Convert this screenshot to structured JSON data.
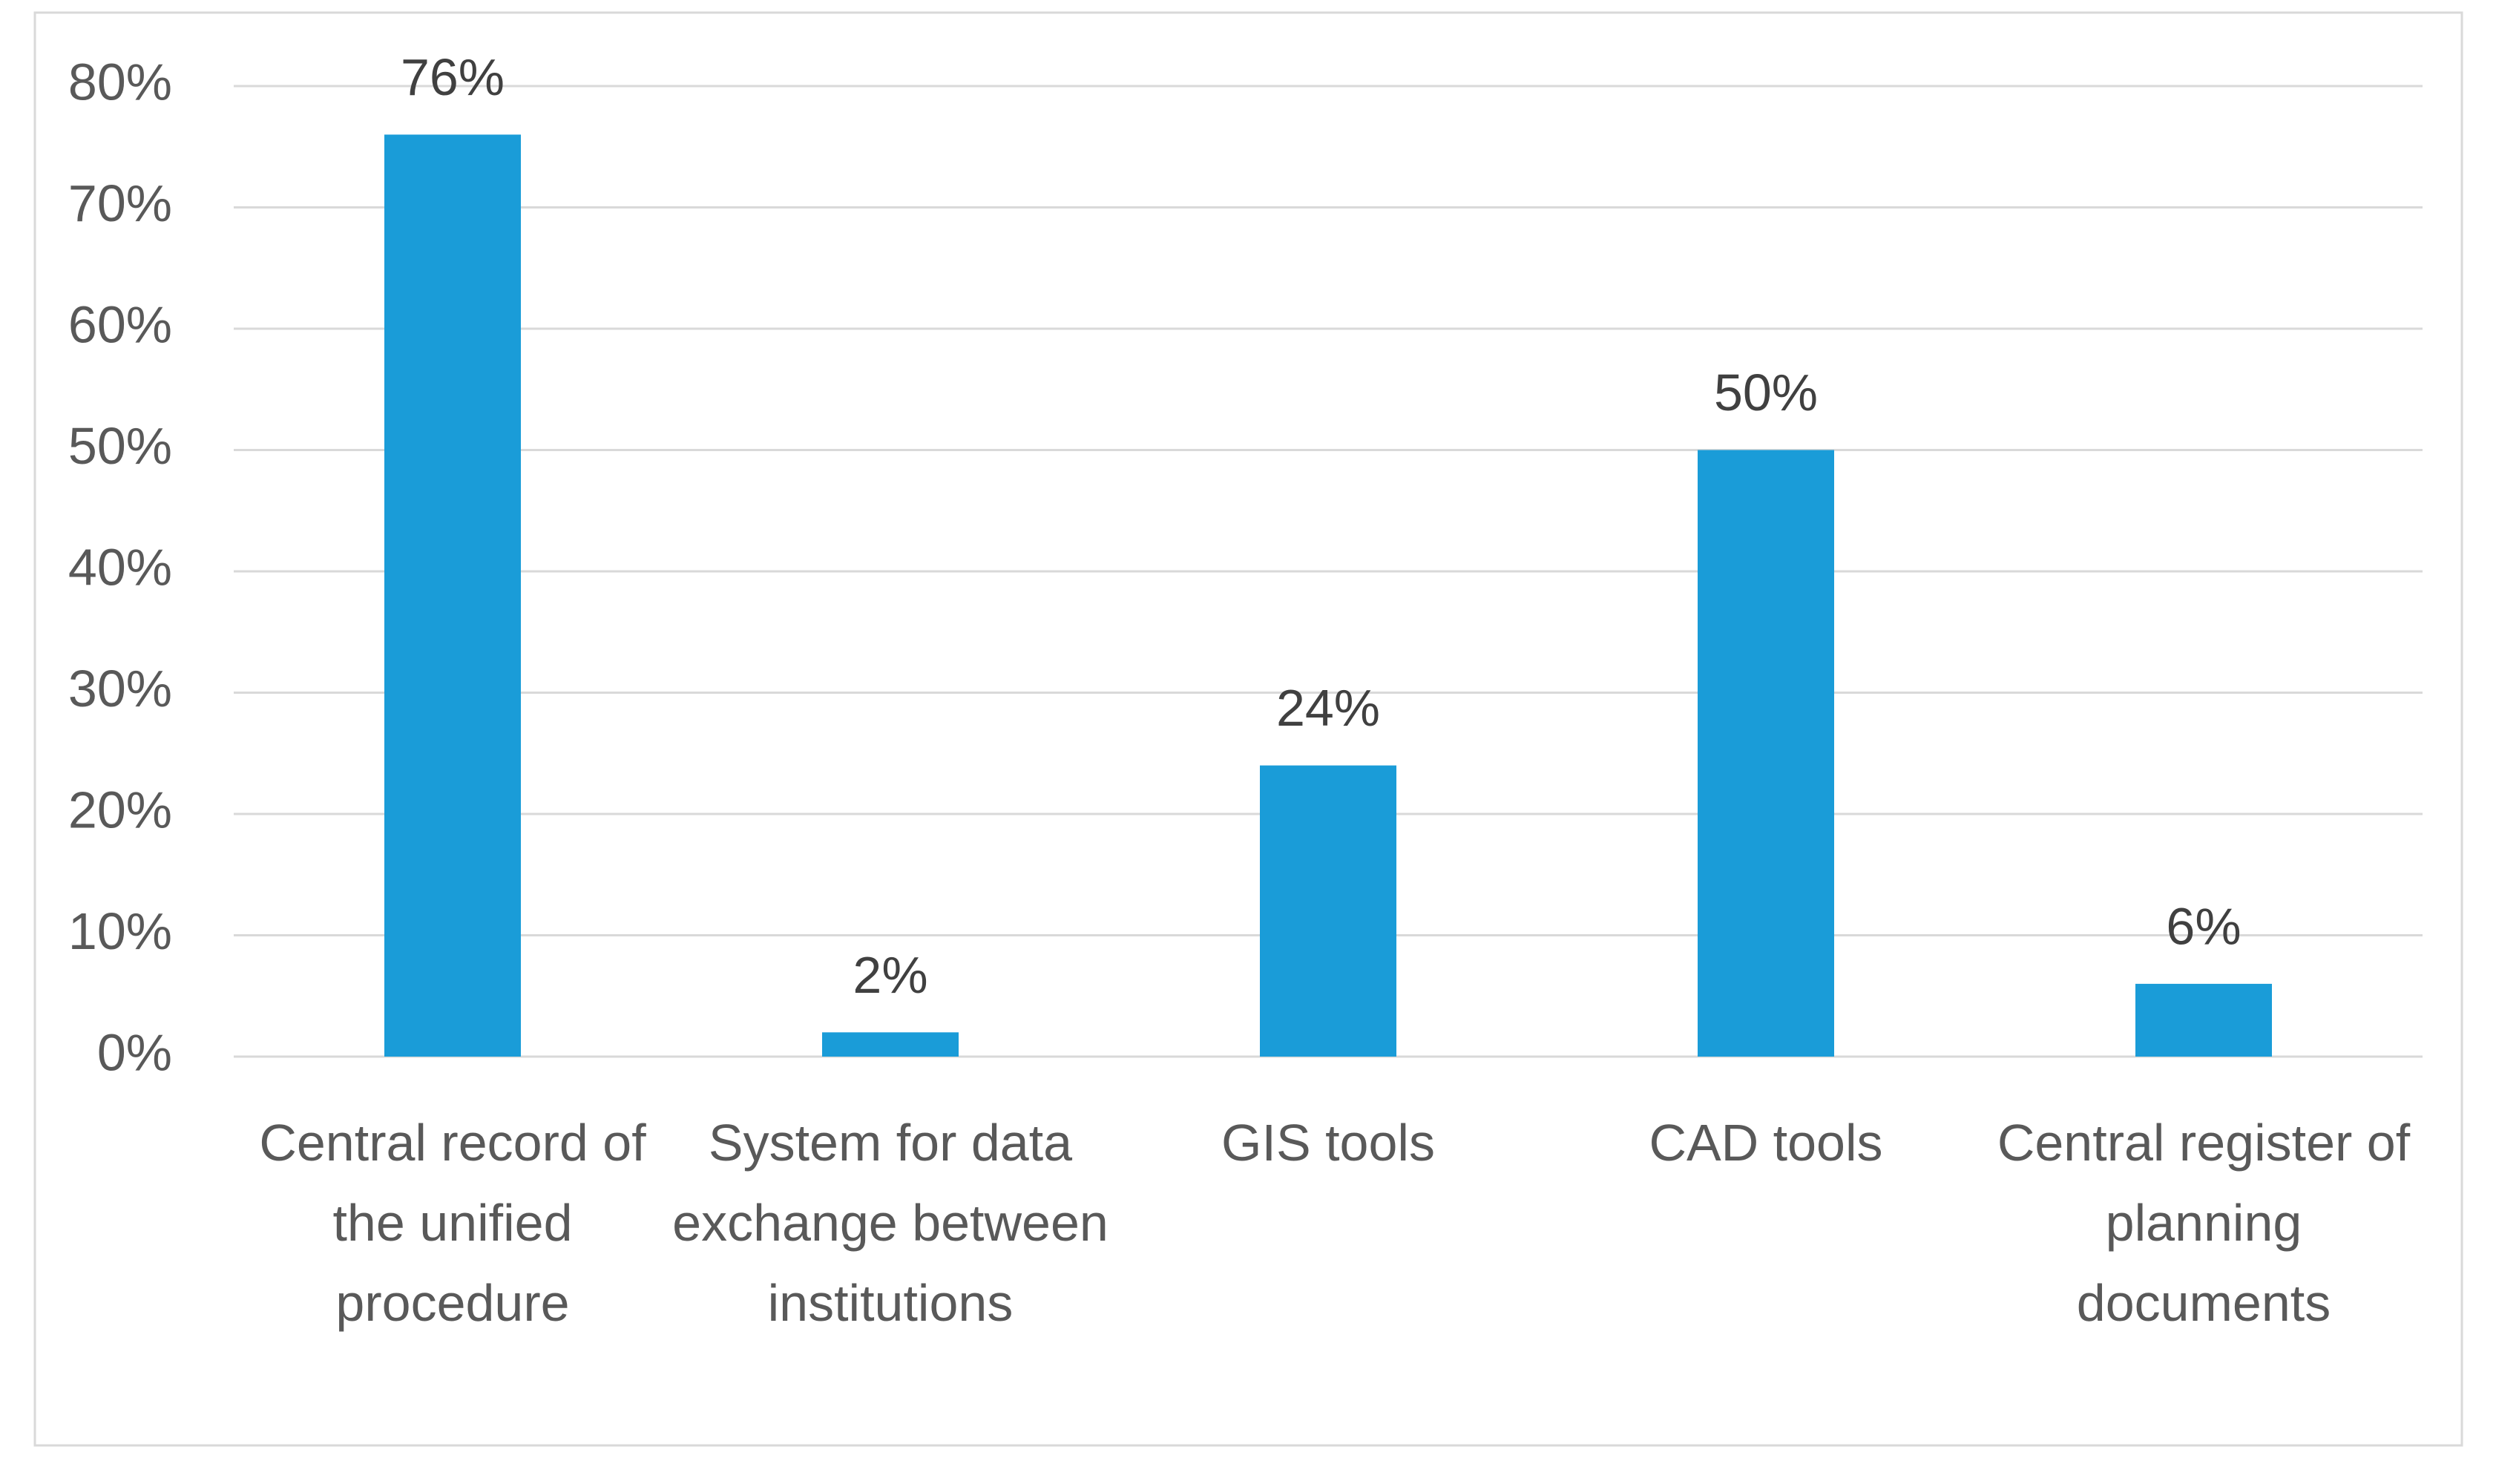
{
  "chart_data": {
    "type": "bar",
    "categories": [
      "Central record of the unified procedure",
      "System for data exchange between institutions",
      "GIS tools",
      "CAD tools",
      "Central register of planning documents"
    ],
    "values": [
      76,
      2,
      24,
      50,
      6
    ],
    "value_labels": [
      "76%",
      "2%",
      "24%",
      "50%",
      "6%"
    ],
    "color": "#1a9cd8",
    "ylim": [
      0,
      80
    ],
    "yticks": [
      {
        "value": 0,
        "label": "0%"
      },
      {
        "value": 10,
        "label": "10%"
      },
      {
        "value": 20,
        "label": "20%"
      },
      {
        "value": 30,
        "label": "30%"
      },
      {
        "value": 40,
        "label": "40%"
      },
      {
        "value": 50,
        "label": "50%"
      },
      {
        "value": 60,
        "label": "60%"
      },
      {
        "value": 70,
        "label": "70%"
      },
      {
        "value": 80,
        "label": "80%"
      }
    ],
    "grid": true
  }
}
